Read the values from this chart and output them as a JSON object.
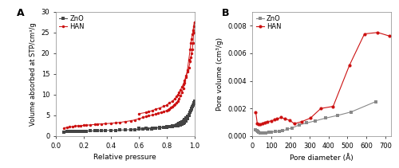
{
  "panel_A": {
    "title": "A",
    "xlabel": "Relative pressure",
    "ylabel": "Volume absorbed at STP/cm³/g",
    "ylim": [
      0,
      30
    ],
    "xlim": [
      0.05,
      1.0
    ],
    "ZnO_adsorption_x": [
      0.06,
      0.08,
      0.1,
      0.12,
      0.14,
      0.16,
      0.18,
      0.2,
      0.22,
      0.25,
      0.28,
      0.3,
      0.33,
      0.36,
      0.4,
      0.43,
      0.46,
      0.5,
      0.54,
      0.57,
      0.6,
      0.63,
      0.66,
      0.69,
      0.72,
      0.75,
      0.78,
      0.8,
      0.82,
      0.84,
      0.86,
      0.87,
      0.88,
      0.89,
      0.9,
      0.91,
      0.92,
      0.93,
      0.94,
      0.95,
      0.96,
      0.97,
      0.975,
      0.98,
      0.985,
      0.99,
      0.995,
      1.0
    ],
    "ZnO_adsorption_y": [
      1.0,
      1.05,
      1.05,
      1.1,
      1.1,
      1.15,
      1.15,
      1.2,
      1.2,
      1.25,
      1.25,
      1.3,
      1.3,
      1.35,
      1.4,
      1.4,
      1.45,
      1.5,
      1.55,
      1.6,
      1.65,
      1.7,
      1.75,
      1.8,
      1.9,
      2.0,
      2.1,
      2.15,
      2.2,
      2.3,
      2.4,
      2.45,
      2.5,
      2.6,
      2.7,
      2.8,
      3.0,
      3.3,
      3.7,
      4.2,
      5.0,
      5.8,
      6.2,
      6.7,
      7.0,
      7.4,
      7.8,
      8.5
    ],
    "ZnO_desorption_x": [
      1.0,
      0.995,
      0.99,
      0.985,
      0.98,
      0.975,
      0.97,
      0.96,
      0.95,
      0.94,
      0.93,
      0.92,
      0.91,
      0.9,
      0.89,
      0.88,
      0.87,
      0.86,
      0.84,
      0.82,
      0.8,
      0.75,
      0.7,
      0.65,
      0.6
    ],
    "ZnO_desorption_y": [
      8.5,
      8.0,
      7.5,
      7.0,
      6.5,
      6.2,
      5.8,
      5.2,
      4.8,
      4.4,
      4.0,
      3.7,
      3.4,
      3.2,
      3.0,
      2.8,
      2.65,
      2.55,
      2.4,
      2.3,
      2.2,
      2.1,
      2.0,
      1.9,
      1.85
    ],
    "HAN_adsorption_x": [
      0.06,
      0.08,
      0.1,
      0.12,
      0.14,
      0.16,
      0.18,
      0.2,
      0.22,
      0.25,
      0.28,
      0.3,
      0.33,
      0.36,
      0.4,
      0.43,
      0.46,
      0.5,
      0.54,
      0.57,
      0.6,
      0.63,
      0.65,
      0.67,
      0.7,
      0.72,
      0.74,
      0.76,
      0.78,
      0.8,
      0.81,
      0.82,
      0.83,
      0.84,
      0.85,
      0.86,
      0.87,
      0.88,
      0.89,
      0.9,
      0.91,
      0.92,
      0.93,
      0.94,
      0.95,
      0.96,
      0.97,
      0.975,
      0.98,
      0.985,
      0.99,
      0.995,
      1.0
    ],
    "HAN_adsorption_y": [
      2.0,
      2.1,
      2.2,
      2.3,
      2.4,
      2.5,
      2.5,
      2.6,
      2.65,
      2.7,
      2.8,
      2.9,
      2.95,
      3.0,
      3.1,
      3.2,
      3.3,
      3.5,
      3.7,
      3.9,
      4.2,
      4.5,
      4.7,
      4.9,
      5.1,
      5.3,
      5.5,
      5.7,
      5.9,
      6.2,
      6.4,
      6.6,
      6.9,
      7.1,
      7.4,
      7.7,
      8.0,
      8.5,
      9.0,
      9.7,
      10.5,
      11.5,
      12.8,
      14.2,
      16.0,
      18.5,
      21.0,
      22.5,
      23.5,
      24.5,
      25.5,
      26.5,
      27.5
    ],
    "HAN_desorption_x": [
      1.0,
      0.995,
      0.99,
      0.985,
      0.98,
      0.975,
      0.97,
      0.96,
      0.95,
      0.94,
      0.93,
      0.92,
      0.91,
      0.9,
      0.89,
      0.88,
      0.87,
      0.86,
      0.84,
      0.82,
      0.8,
      0.78,
      0.75,
      0.72,
      0.7,
      0.67,
      0.65,
      0.6
    ],
    "HAN_desorption_y": [
      27.5,
      25.0,
      22.5,
      21.0,
      20.0,
      19.0,
      18.0,
      16.5,
      15.5,
      14.5,
      13.5,
      12.5,
      11.8,
      11.2,
      10.5,
      10.0,
      9.5,
      9.0,
      8.4,
      8.0,
      7.5,
      7.2,
      6.8,
      6.5,
      6.2,
      5.9,
      5.7,
      5.4
    ],
    "ZnO_color": "#444444",
    "HAN_color": "#cc1111",
    "marker_ZnO": "s",
    "marker_HAN": "o",
    "marker_size": 2.5,
    "line_width": 0.7
  },
  "panel_B": {
    "title": "B",
    "xlabel": "Pore diameter (Å)",
    "ylabel": "Pore volume (cm³/g)",
    "ylim": [
      0.0,
      0.009
    ],
    "xlim": [
      0,
      730
    ],
    "ZnO_x": [
      17,
      22,
      27,
      33,
      40,
      50,
      60,
      70,
      85,
      100,
      120,
      140,
      160,
      185,
      210,
      245,
      285,
      330,
      385,
      450,
      520,
      650
    ],
    "ZnO_y": [
      0.00045,
      0.00038,
      0.00032,
      0.00028,
      0.00025,
      0.00022,
      0.0002,
      0.00025,
      0.00028,
      0.0003,
      0.00032,
      0.00035,
      0.00038,
      0.0005,
      0.0006,
      0.0008,
      0.00095,
      0.0011,
      0.0013,
      0.0015,
      0.00175,
      0.0025
    ],
    "HAN_x": [
      17,
      25,
      33,
      42,
      52,
      65,
      80,
      100,
      115,
      130,
      150,
      170,
      195,
      220,
      260,
      305,
      360,
      425,
      510,
      590,
      660,
      720
    ],
    "HAN_y": [
      0.00175,
      0.0009,
      0.00085,
      0.00088,
      0.00092,
      0.001,
      0.00105,
      0.0011,
      0.00118,
      0.00125,
      0.00135,
      0.00125,
      0.00115,
      0.0009,
      0.00105,
      0.0013,
      0.002,
      0.00215,
      0.0051,
      0.0074,
      0.0075,
      0.00725
    ],
    "ZnO_color": "#888888",
    "HAN_color": "#cc1111",
    "marker_ZnO": "s",
    "marker_HAN": "o",
    "marker_size": 3.0,
    "line_width": 0.8
  },
  "figure_bg": "#ffffff",
  "axes_bg": "#ffffff"
}
